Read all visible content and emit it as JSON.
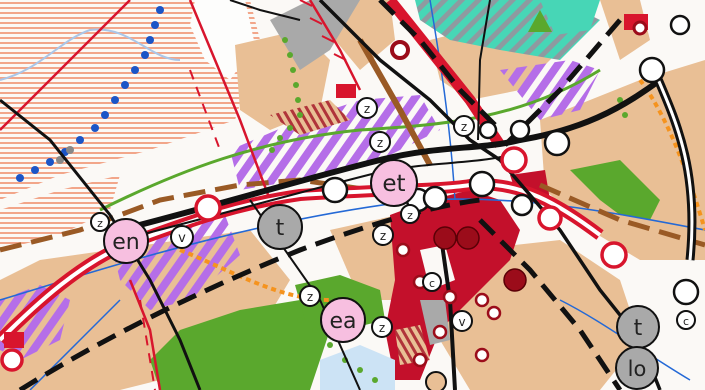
{
  "map": {
    "colors": {
      "background": "#fbf9f6",
      "landuse_tan": "#e9bf95",
      "hatch_salmon": "#f2a68a",
      "rail_red": "#d8152d",
      "urban_crimson": "#c3102b",
      "purple": "#b56ee8",
      "teal": "#47d6b6",
      "green": "#5aa82d",
      "rail_black": "#111111",
      "brown": "#9a5a25",
      "orange": "#f5931e",
      "blue_dots": "#1b55c7",
      "pink_label": "#f7bfe0",
      "gray_label": "#a9a9a9"
    },
    "place_labels": [
      {
        "id": "en",
        "text": "en",
        "style": "pink"
      },
      {
        "id": "et",
        "text": "et",
        "style": "pink"
      },
      {
        "id": "ea",
        "text": "ea",
        "style": "pink"
      },
      {
        "id": "t1",
        "text": "t",
        "style": "gray"
      },
      {
        "id": "t2",
        "text": "t",
        "style": "gray"
      },
      {
        "id": "lo",
        "text": "lo",
        "style": "gray"
      }
    ],
    "small_markers": [
      {
        "id": "v1",
        "text": "v"
      },
      {
        "id": "z1",
        "text": "z"
      },
      {
        "id": "z2",
        "text": "z"
      },
      {
        "id": "z3",
        "text": "z"
      },
      {
        "id": "z4",
        "text": "z"
      },
      {
        "id": "z5",
        "text": "z"
      },
      {
        "id": "z6",
        "text": "z"
      },
      {
        "id": "z7",
        "text": "z"
      },
      {
        "id": "z8",
        "text": "z"
      },
      {
        "id": "v2",
        "text": "v"
      },
      {
        "id": "c1",
        "text": "c"
      },
      {
        "id": "c2",
        "text": "c"
      }
    ]
  }
}
